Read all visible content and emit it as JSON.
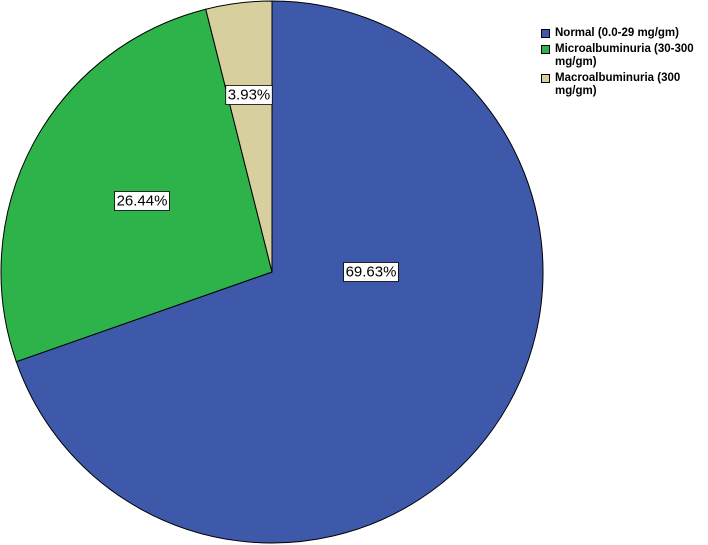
{
  "chart_data": {
    "type": "pie",
    "slices": [
      {
        "label": "Normal (0.0-29 mg/gm)",
        "value": 69.63,
        "display": "69.63%",
        "color": "#3e58aa"
      },
      {
        "label": "Microalbuminuria  (30-300 mg/gm)",
        "value": 26.44,
        "display": "26.44%",
        "color": "#2db34a"
      },
      {
        "label": "Macroalbuminuria (300 mg/gm)",
        "value": 3.93,
        "display": "3.93%",
        "color": "#d8cf9f"
      }
    ],
    "start_angle_deg": 0,
    "direction": "clockwise",
    "legend_position": "top-right"
  }
}
